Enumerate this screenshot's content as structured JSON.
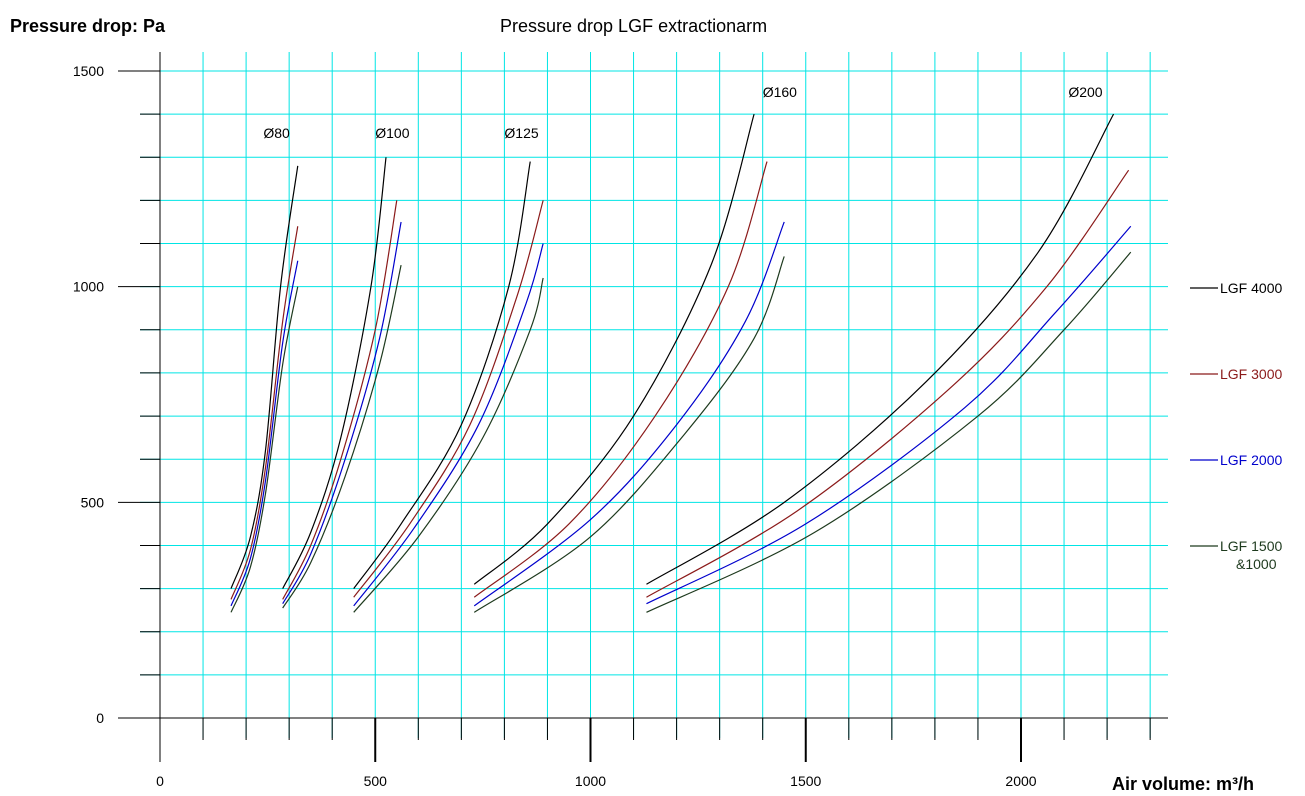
{
  "chart_data": {
    "type": "line",
    "title": "Pressure drop LGF extractionarm",
    "ylabel": "Pressure drop: Pa",
    "xlabel": "Air volume: m³/h",
    "xlim": [
      0,
      2300
    ],
    "ylim": [
      0,
      1500
    ],
    "x_ticks": [
      0,
      500,
      1000,
      1500,
      2000
    ],
    "y_ticks": [
      0,
      500,
      1000,
      1500
    ],
    "grid": true,
    "legend_position": "right",
    "series_styles": [
      {
        "name": "LGF 4000",
        "color": "#000000"
      },
      {
        "name": "LGF 3000",
        "color": "#8b1a1a"
      },
      {
        "name": "LGF 2000",
        "color": "#0000cc"
      },
      {
        "name": "LGF 1500\n&1000",
        "color": "#1e3a1e"
      }
    ],
    "groups": [
      {
        "label": "Ø80",
        "label_at": [
          240,
          1345
        ],
        "curves": [
          {
            "series": "LGF 4000",
            "points": [
              [
                165,
                300
              ],
              [
                210,
                420
              ],
              [
                245,
                620
              ],
              [
                280,
                1000
              ],
              [
                320,
                1280
              ]
            ]
          },
          {
            "series": "LGF 3000",
            "points": [
              [
                165,
                275
              ],
              [
                210,
                390
              ],
              [
                245,
                580
              ],
              [
                285,
                920
              ],
              [
                320,
                1140
              ]
            ]
          },
          {
            "series": "LGF 2000",
            "points": [
              [
                165,
                260
              ],
              [
                210,
                370
              ],
              [
                245,
                550
              ],
              [
                285,
                870
              ],
              [
                320,
                1060
              ]
            ]
          },
          {
            "series": "LGF 1500\n&1000",
            "points": [
              [
                165,
                245
              ],
              [
                210,
                350
              ],
              [
                245,
                520
              ],
              [
                285,
                820
              ],
              [
                320,
                1000
              ]
            ]
          }
        ]
      },
      {
        "label": "Ø100",
        "label_at": [
          500,
          1345
        ],
        "curves": [
          {
            "series": "LGF 4000",
            "points": [
              [
                285,
                300
              ],
              [
                350,
                430
              ],
              [
                420,
                650
              ],
              [
                490,
                1000
              ],
              [
                525,
                1300
              ]
            ]
          },
          {
            "series": "LGF 3000",
            "points": [
              [
                285,
                275
              ],
              [
                350,
                400
              ],
              [
                420,
                600
              ],
              [
                500,
                900
              ],
              [
                550,
                1200
              ]
            ]
          },
          {
            "series": "LGF 2000",
            "points": [
              [
                285,
                265
              ],
              [
                350,
                380
              ],
              [
                430,
                600
              ],
              [
                510,
                880
              ],
              [
                560,
                1150
              ]
            ]
          },
          {
            "series": "LGF 1500\n&1000",
            "points": [
              [
                285,
                255
              ],
              [
                350,
                360
              ],
              [
                430,
                560
              ],
              [
                510,
                820
              ],
              [
                560,
                1050
              ]
            ]
          }
        ]
      },
      {
        "label": "Ø125",
        "label_at": [
          800,
          1345
        ],
        "curves": [
          {
            "series": "LGF 4000",
            "points": [
              [
                450,
                300
              ],
              [
                560,
                450
              ],
              [
                700,
                680
              ],
              [
                810,
                1000
              ],
              [
                860,
                1290
              ]
            ]
          },
          {
            "series": "LGF 3000",
            "points": [
              [
                450,
                280
              ],
              [
                580,
                450
              ],
              [
                720,
                680
              ],
              [
                830,
                980
              ],
              [
                890,
                1200
              ]
            ]
          },
          {
            "series": "LGF 2000",
            "points": [
              [
                450,
                260
              ],
              [
                590,
                440
              ],
              [
                740,
                680
              ],
              [
                850,
                960
              ],
              [
                890,
                1100
              ]
            ]
          },
          {
            "series": "LGF 1500\n&1000",
            "points": [
              [
                450,
                245
              ],
              [
                600,
                420
              ],
              [
                750,
                650
              ],
              [
                860,
                900
              ],
              [
                890,
                1020
              ]
            ]
          }
        ]
      },
      {
        "label": "Ø160",
        "label_at": [
          1400,
          1440
        ],
        "curves": [
          {
            "series": "LGF 4000",
            "points": [
              [
                730,
                310
              ],
              [
                900,
                450
              ],
              [
                1100,
                700
              ],
              [
                1280,
                1050
              ],
              [
                1380,
                1400
              ]
            ]
          },
          {
            "series": "LGF 3000",
            "points": [
              [
                730,
                280
              ],
              [
                950,
                450
              ],
              [
                1150,
                700
              ],
              [
                1320,
                1000
              ],
              [
                1410,
                1290
              ]
            ]
          },
          {
            "series": "LGF 2000",
            "points": [
              [
                730,
                260
              ],
              [
                1000,
                460
              ],
              [
                1200,
                680
              ],
              [
                1360,
                920
              ],
              [
                1450,
                1150
              ]
            ]
          },
          {
            "series": "LGF 1500\n&1000",
            "points": [
              [
                730,
                245
              ],
              [
                1000,
                420
              ],
              [
                1220,
                660
              ],
              [
                1380,
                880
              ],
              [
                1450,
                1070
              ]
            ]
          }
        ]
      },
      {
        "label": "Ø200",
        "label_at": [
          2110,
          1440
        ],
        "curves": [
          {
            "series": "LGF 4000",
            "points": [
              [
                1130,
                310
              ],
              [
                1450,
                500
              ],
              [
                1780,
                780
              ],
              [
                2040,
                1080
              ],
              [
                2215,
                1400
              ]
            ]
          },
          {
            "series": "LGF 3000",
            "points": [
              [
                1130,
                280
              ],
              [
                1480,
                480
              ],
              [
                1830,
                760
              ],
              [
                2060,
                1000
              ],
              [
                2250,
                1270
              ]
            ]
          },
          {
            "series": "LGF 2000",
            "points": [
              [
                1130,
                265
              ],
              [
                1500,
                450
              ],
              [
                1870,
                720
              ],
              [
                2080,
                940
              ],
              [
                2255,
                1140
              ]
            ]
          },
          {
            "series": "LGF 1500\n&1000",
            "points": [
              [
                1130,
                245
              ],
              [
                1520,
                430
              ],
              [
                1900,
                700
              ],
              [
                2100,
                900
              ],
              [
                2255,
                1080
              ]
            ]
          }
        ]
      }
    ]
  }
}
